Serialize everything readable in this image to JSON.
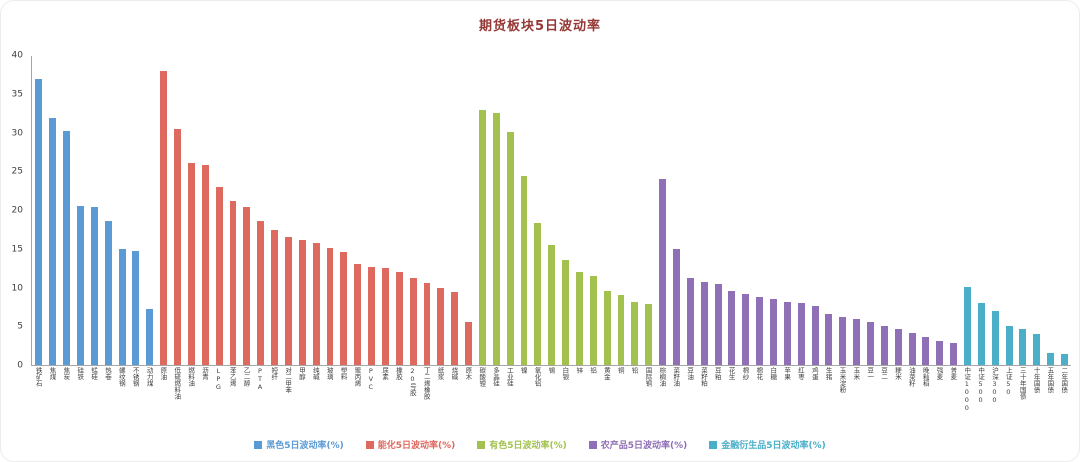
{
  "title": "期货板块5日波动率",
  "colors": {
    "black_sector": "#5B9BD5",
    "energy_chem": "#DE6A5F",
    "nonferrous": "#A2C14E",
    "agriculture": "#8F6FB5",
    "financial": "#4BAFC9",
    "title_color": "#953735",
    "axis_text": "#404040"
  },
  "chart_data": {
    "type": "bar",
    "title": "期货板块5日波动率",
    "xlabel": "",
    "ylabel": "",
    "ylim": [
      0,
      40
    ],
    "yticks": [
      0,
      5,
      10,
      15,
      20,
      25,
      30,
      35,
      40
    ],
    "grid": false,
    "legend_position": "bottom",
    "series": [
      {
        "name": "黑色5日波动率(%)",
        "color": "#5B9BD5",
        "points": [
          {
            "label": "铁矿石",
            "value": 37.0
          },
          {
            "label": "焦煤",
            "value": 32.0
          },
          {
            "label": "焦炭",
            "value": 30.3
          },
          {
            "label": "硅铁",
            "value": 20.6
          },
          {
            "label": "锰硅",
            "value": 20.4
          },
          {
            "label": "热卷",
            "value": 18.6
          },
          {
            "label": "螺纹钢",
            "value": 15.0
          },
          {
            "label": "不锈钢",
            "value": 14.8
          },
          {
            "label": "动力煤",
            "value": 7.2
          }
        ]
      },
      {
        "name": "能化5日波动率(%)",
        "color": "#DE6A5F",
        "points": [
          {
            "label": "原油",
            "value": 38.0
          },
          {
            "label": "低硫燃料油",
            "value": 30.6
          },
          {
            "label": "燃料油",
            "value": 26.2
          },
          {
            "label": "沥青",
            "value": 25.9
          },
          {
            "label": "LPG",
            "value": 23.0
          },
          {
            "label": "苯乙烯",
            "value": 21.2
          },
          {
            "label": "乙二醇",
            "value": 20.5
          },
          {
            "label": "PTA",
            "value": 18.6
          },
          {
            "label": "短纤",
            "value": 17.5
          },
          {
            "label": "对二甲苯",
            "value": 16.6
          },
          {
            "label": "甲醇",
            "value": 16.2
          },
          {
            "label": "纯碱",
            "value": 15.8
          },
          {
            "label": "玻璃",
            "value": 15.2
          },
          {
            "label": "塑料",
            "value": 14.6
          },
          {
            "label": "聚丙烯",
            "value": 13.1
          },
          {
            "label": "PVC",
            "value": 12.7
          },
          {
            "label": "尿素",
            "value": 12.5
          },
          {
            "label": "橡胶",
            "value": 12.0
          },
          {
            "label": "20号胶",
            "value": 11.2
          },
          {
            "label": "丁二烯橡胶",
            "value": 10.6
          },
          {
            "label": "纸浆",
            "value": 10.0
          },
          {
            "label": "烧碱",
            "value": 9.5
          },
          {
            "label": "原木",
            "value": 5.6
          }
        ]
      },
      {
        "name": "有色5日波动率(%)",
        "color": "#A2C14E",
        "points": [
          {
            "label": "碳酸锂",
            "value": 33.0
          },
          {
            "label": "多晶硅",
            "value": 32.6
          },
          {
            "label": "工业硅",
            "value": 30.1
          },
          {
            "label": "镍",
            "value": 24.5
          },
          {
            "label": "氧化铝",
            "value": 18.4
          },
          {
            "label": "锡",
            "value": 15.5
          },
          {
            "label": "白银",
            "value": 13.6
          },
          {
            "label": "锌",
            "value": 12.1
          },
          {
            "label": "铝",
            "value": 11.5
          },
          {
            "label": "黄金",
            "value": 9.6
          },
          {
            "label": "铜",
            "value": 9.0
          },
          {
            "label": "铅",
            "value": 8.1
          },
          {
            "label": "国际铜",
            "value": 7.9
          }
        ]
      },
      {
        "name": "农产品5日波动率(%)",
        "color": "#8F6FB5",
        "points": [
          {
            "label": "棕榈油",
            "value": 24.1
          },
          {
            "label": "菜籽油",
            "value": 15.0
          },
          {
            "label": "豆油",
            "value": 11.2
          },
          {
            "label": "菜籽粕",
            "value": 10.8
          },
          {
            "label": "豆粕",
            "value": 10.5
          },
          {
            "label": "花生",
            "value": 9.6
          },
          {
            "label": "棉纱",
            "value": 9.2
          },
          {
            "label": "棉花",
            "value": 8.8
          },
          {
            "label": "白糖",
            "value": 8.6
          },
          {
            "label": "苹果",
            "value": 8.2
          },
          {
            "label": "红枣",
            "value": 8.0
          },
          {
            "label": "鸡蛋",
            "value": 7.6
          },
          {
            "label": "生猪",
            "value": 6.6
          },
          {
            "label": "玉米淀粉",
            "value": 6.2
          },
          {
            "label": "玉米",
            "value": 6.0
          },
          {
            "label": "豆一",
            "value": 5.6
          },
          {
            "label": "豆二",
            "value": 5.1
          },
          {
            "label": "粳米",
            "value": 4.6
          },
          {
            "label": "油菜籽",
            "value": 4.1
          },
          {
            "label": "晚籼稻",
            "value": 3.6
          },
          {
            "label": "强麦",
            "value": 3.1
          },
          {
            "label": "普麦",
            "value": 2.9
          }
        ]
      },
      {
        "name": "金融衍生品5日波动率(%)",
        "color": "#4BAFC9",
        "points": [
          {
            "label": "中证1000",
            "value": 10.1
          },
          {
            "label": "中证500",
            "value": 8.0
          },
          {
            "label": "沪深300",
            "value": 7.0
          },
          {
            "label": "上证50",
            "value": 5.1
          },
          {
            "label": "三十年国债",
            "value": 4.6
          },
          {
            "label": "十年国债",
            "value": 4.0
          },
          {
            "label": "五年国债",
            "value": 1.6
          },
          {
            "label": "二年国债",
            "value": 1.4
          }
        ]
      }
    ]
  }
}
